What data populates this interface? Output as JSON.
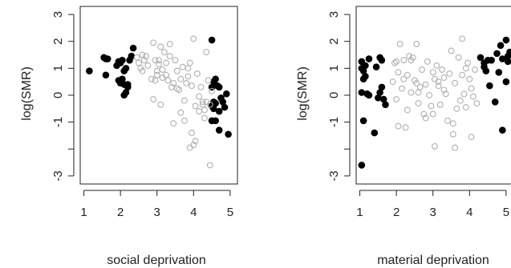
{
  "colors": {
    "highlight": "#000000",
    "other": "#b0b0b0",
    "axis": "#222222"
  },
  "chart_data": [
    {
      "type": "scatter",
      "xlabel": "social deprivation",
      "ylabel": "log(SMR)",
      "xlim": [
        0.9,
        5.2
      ],
      "ylim": [
        -3.3,
        3.3
      ],
      "x_ticks": [
        1,
        2,
        3,
        4,
        5
      ],
      "x_tick_labels": [
        "1",
        "2",
        "3",
        "4",
        "5"
      ],
      "y_ticks": [
        -3,
        -2,
        -1,
        0,
        1,
        2,
        3
      ],
      "y_tick_labels": [
        "-3",
        "",
        "-1",
        "0",
        "1",
        "2",
        "3"
      ],
      "grid": false,
      "legend": "none",
      "series": [
        {
          "style": "filled",
          "color": "#000000",
          "x": [
            1.15,
            1.55,
            1.6,
            1.65,
            1.6,
            1.9,
            1.95,
            2.0,
            2.05,
            2.1,
            2.15,
            2.0,
            2.1,
            2.15,
            2.2,
            1.95,
            2.05,
            2.2,
            2.1,
            2.25,
            2.35,
            2.3,
            4.5,
            4.55,
            4.6,
            4.5,
            4.65,
            4.7,
            4.55,
            4.8,
            4.9,
            4.75,
            4.6,
            4.5,
            4.55,
            4.7,
            4.85,
            4.95,
            4.6,
            4.7,
            4.5
          ],
          "y": [
            0.9,
            1.4,
            0.75,
            1.35,
            1.35,
            1.1,
            1.25,
            1.2,
            1.3,
            0.9,
            1.0,
            0.45,
            0.4,
            0.1,
            0.3,
            0.55,
            0.6,
            0.4,
            0.0,
            1.3,
            1.75,
            1.45,
            2.05,
            0.5,
            0.6,
            0.3,
            0.35,
            0.3,
            -0.25,
            -0.25,
            0.05,
            -0.1,
            -0.3,
            -0.4,
            -0.5,
            -0.6,
            -0.45,
            -1.45,
            -0.95,
            -1.3,
            -0.95
          ]
        },
        {
          "style": "open",
          "color": "#b0b0b0",
          "x": [
            2.45,
            2.55,
            2.6,
            2.65,
            2.7,
            2.5,
            2.6,
            2.75,
            2.85,
            2.9,
            2.95,
            3.0,
            3.05,
            3.1,
            3.15,
            3.2,
            3.25,
            3.3,
            3.35,
            3.4,
            3.45,
            3.5,
            3.55,
            3.6,
            3.65,
            3.7,
            3.75,
            3.8,
            3.85,
            3.9,
            3.95,
            4.0,
            4.05,
            4.1,
            4.15,
            4.2,
            4.25,
            4.3,
            4.35,
            4.4,
            4.45,
            4.5,
            2.95,
            3.05,
            3.15,
            3.25,
            3.35,
            3.45,
            3.55,
            3.65,
            3.75,
            3.85,
            3.95,
            4.05,
            4.15,
            4.25,
            4.35,
            4.45,
            3.9,
            4.0,
            4.3,
            2.9,
            3.0,
            3.1
          ],
          "y": [
            1.4,
            1.0,
            0.9,
            1.3,
            1.45,
            1.2,
            1.5,
            1.1,
            0.6,
            1.95,
            1.3,
            0.75,
            1.15,
            1.8,
            0.65,
            1.6,
            1.2,
            0.55,
            1.9,
            0.3,
            0.45,
            1.3,
            0.9,
            0.2,
            0.6,
            1.05,
            -0.2,
            0.45,
            0.7,
            1.2,
            0.35,
            2.1,
            -0.4,
            0.8,
            -0.6,
            0.3,
            -0.25,
            -0.85,
            1.6,
            0.55,
            -0.35,
            0.15,
            0.55,
            1.3,
            0.95,
            0.75,
            1.45,
            -1.05,
            0.25,
            -0.65,
            -0.95,
            1.0,
            -1.4,
            -1.7,
            -0.05,
            -0.35,
            -0.25,
            -2.6,
            -1.95,
            -1.85,
            -0.55,
            -0.15,
            0.9,
            -0.35
          ]
        }
      ]
    },
    {
      "type": "scatter",
      "xlabel": "material deprivation",
      "ylabel": "log(SMR)",
      "xlim": [
        0.9,
        5.2
      ],
      "ylim": [
        -3.3,
        3.3
      ],
      "x_ticks": [
        1,
        2,
        3,
        4,
        5
      ],
      "x_tick_labels": [
        "1",
        "2",
        "3",
        "4",
        "5"
      ],
      "y_ticks": [
        -3,
        -2,
        -1,
        0,
        1,
        2,
        3
      ],
      "y_tick_labels": [
        "-3",
        "",
        "-1",
        "0",
        "1",
        "2",
        "3"
      ],
      "grid": false,
      "legend": "none",
      "series": [
        {
          "style": "filled",
          "color": "#000000",
          "x": [
            1.05,
            1.1,
            1.15,
            1.25,
            1.05,
            1.1,
            1.2,
            1.25,
            1.1,
            1.05,
            1.15,
            1.45,
            1.55,
            1.6,
            1.5,
            1.7,
            1.6,
            1.65,
            1.55,
            1.4,
            1.05,
            4.3,
            4.4,
            4.5,
            4.45,
            4.6,
            4.75,
            4.85,
            4.9,
            5.0,
            5.05,
            5.1,
            5.0,
            5.05,
            4.7,
            4.8,
            4.9,
            4.55,
            4.4
          ],
          "y": [
            1.25,
            0.9,
            0.7,
            1.35,
            0.1,
            0.6,
            0.05,
            0.0,
            -0.95,
            1.0,
            1.1,
            1.05,
            1.4,
            1.3,
            -0.1,
            -0.35,
            0.3,
            -0.15,
            0.1,
            -1.4,
            -2.6,
            1.4,
            1.2,
            1.3,
            0.9,
            1.3,
            1.55,
            1.85,
            1.35,
            2.05,
            1.25,
            1.6,
            0.5,
            1.45,
            -0.25,
            0.85,
            -1.3,
            0.35,
            1.05
          ]
        },
        {
          "style": "open",
          "color": "#b0b0b0",
          "x": [
            1.9,
            1.95,
            2.0,
            2.05,
            2.1,
            2.15,
            2.2,
            2.25,
            2.3,
            2.35,
            2.4,
            2.45,
            2.5,
            2.55,
            2.6,
            2.65,
            2.7,
            2.75,
            2.8,
            2.85,
            2.9,
            2.95,
            3.0,
            3.05,
            3.1,
            3.15,
            3.2,
            3.25,
            3.3,
            3.35,
            3.4,
            3.45,
            3.5,
            3.55,
            3.6,
            3.65,
            3.7,
            3.75,
            3.8,
            3.85,
            3.9,
            3.95,
            4.0,
            4.05,
            4.1,
            4.15,
            4.2,
            2.05,
            2.3,
            2.55,
            2.8,
            3.05,
            3.3,
            3.55,
            3.8,
            4.05,
            2.0,
            2.2,
            2.6,
            3.15,
            3.6,
            3.9,
            2.4,
            3.0
          ],
          "y": [
            0.5,
            1.2,
            -0.15,
            0.85,
            1.9,
            0.25,
            1.3,
            -1.2,
            0.75,
            1.45,
            0.1,
            1.4,
            0.55,
            1.9,
            -0.3,
            0.3,
            0.95,
            -0.7,
            0.4,
            1.25,
            0.0,
            -0.4,
            0.85,
            0.6,
            1.1,
            0.35,
            -0.35,
            0.95,
            0.2,
            0.05,
            -0.95,
            0.8,
            1.65,
            -1.05,
            0.45,
            -0.5,
            1.4,
            -0.2,
            0.75,
            0.05,
            -0.45,
            1.2,
            0.6,
            -1.55,
            -0.05,
            0.95,
            -0.3,
            -1.15,
            -0.55,
            0.45,
            -0.85,
            -1.9,
            0.65,
            -1.45,
            2.1,
            0.25,
            1.25,
            0.6,
            0.1,
            0.5,
            -1.95,
            1.0,
            1.3,
            -0.7
          ]
        }
      ]
    }
  ]
}
